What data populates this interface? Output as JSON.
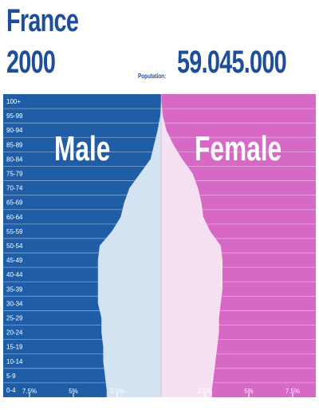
{
  "header": {
    "country": "France",
    "year": "2000",
    "population_label": "Population:",
    "population_value": "59.045.000"
  },
  "colors": {
    "male_bg": "#1f5ea6",
    "female_bg": "#d768c6",
    "male_fill": "#d4e3f1",
    "female_fill": "#f6e1f2",
    "title": "#1f4e99"
  },
  "chart_data": {
    "type": "bar",
    "title": "France 2000",
    "side_labels": [
      "Male",
      "Female"
    ],
    "categories": [
      "0-4",
      "5-9",
      "10-14",
      "15-19",
      "20-24",
      "25-29",
      "30-34",
      "35-39",
      "40-44",
      "45-49",
      "50-54",
      "55-59",
      "60-64",
      "65-69",
      "70-74",
      "75-79",
      "80-84",
      "85-89",
      "90-94",
      "95-99",
      "100+"
    ],
    "series": [
      {
        "name": "Male",
        "values": [
          3.1,
          3.2,
          3.3,
          3.3,
          3.4,
          3.4,
          3.6,
          3.6,
          3.6,
          3.6,
          3.5,
          2.8,
          2.3,
          2.1,
          1.8,
          1.2,
          0.6,
          0.4,
          0.2,
          0.05,
          0.0
        ]
      },
      {
        "name": "Female",
        "values": [
          2.9,
          3.0,
          3.1,
          3.2,
          3.3,
          3.3,
          3.4,
          3.5,
          3.5,
          3.5,
          3.4,
          2.8,
          2.4,
          2.3,
          2.1,
          1.8,
          1.2,
          0.7,
          0.3,
          0.1,
          0.02
        ]
      }
    ],
    "xticks": [
      "7.5%",
      "5%",
      "2.5%",
      "2.5%",
      "5%",
      "7.5%"
    ],
    "xlim": [
      -9,
      9
    ]
  }
}
